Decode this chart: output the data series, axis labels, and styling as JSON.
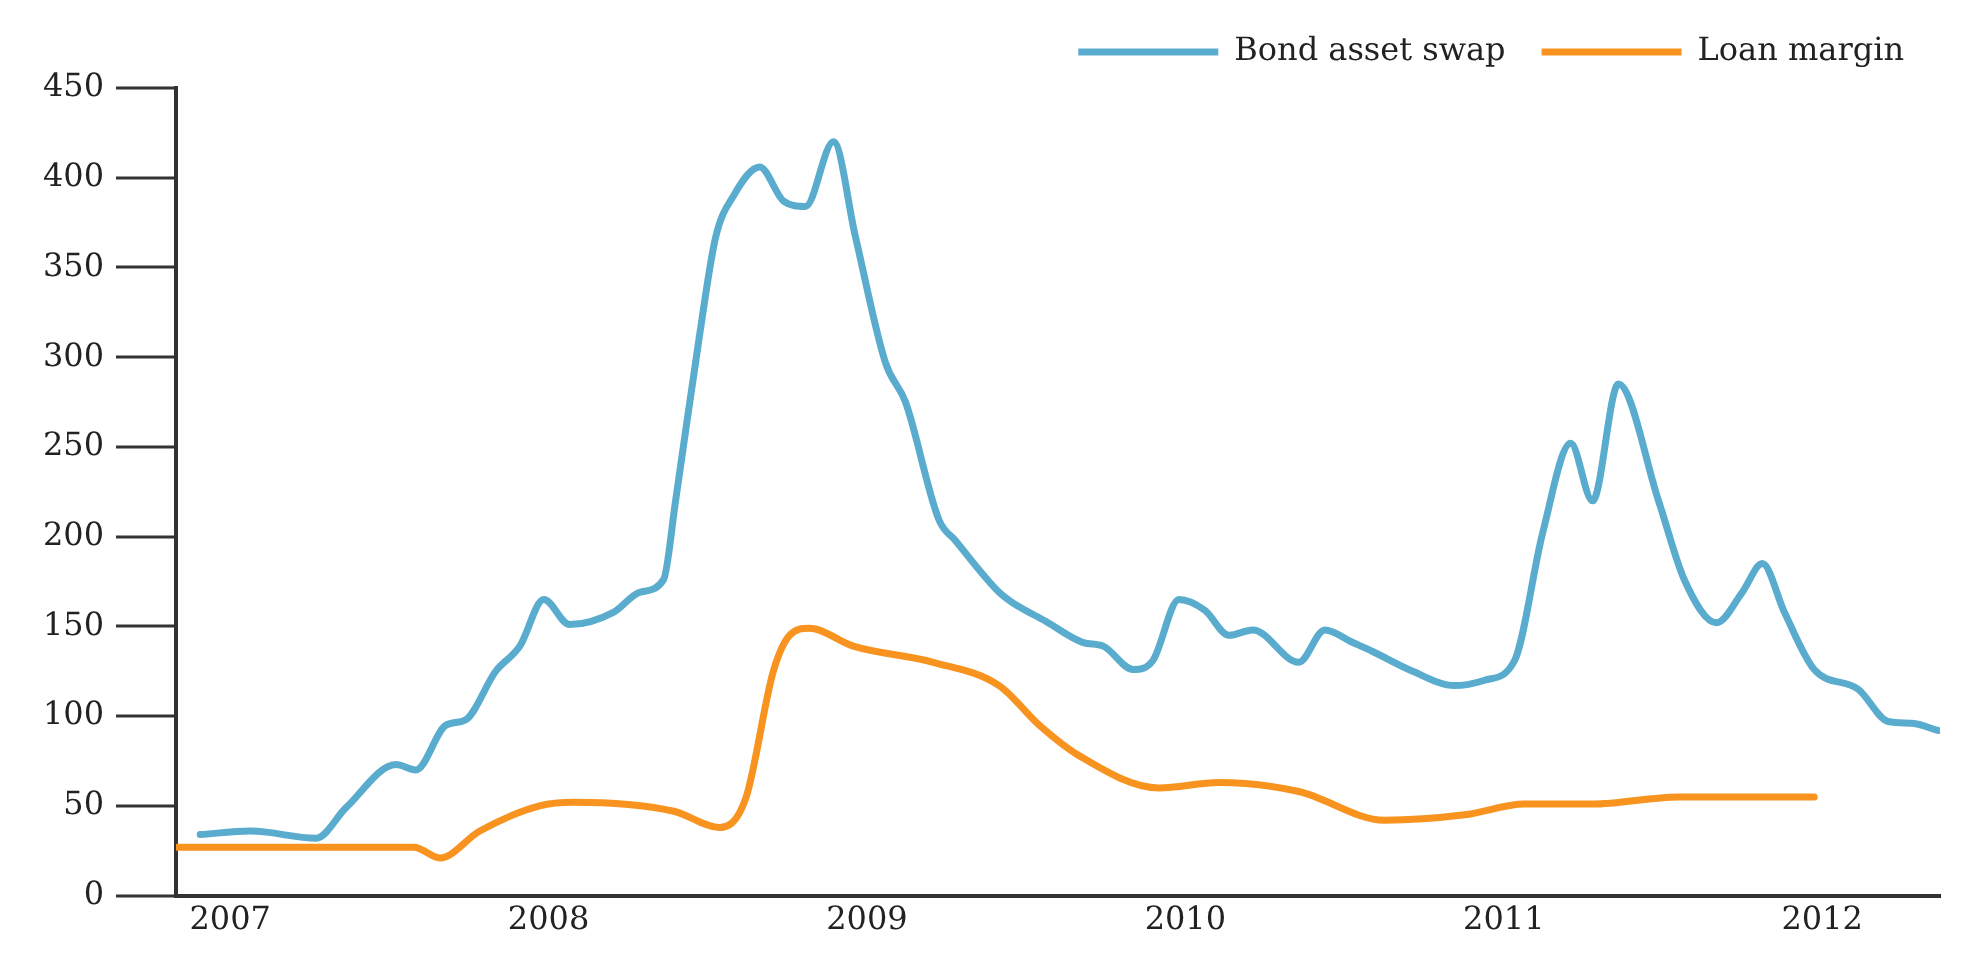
{
  "chart_data": {
    "type": "line",
    "x": [
      2006.906,
      2007.063,
      2007.27,
      2007.364,
      2007.521,
      2007.583,
      2007.678,
      2007.74,
      2007.834,
      2007.91,
      2007.985,
      2008.066,
      2008.205,
      2008.286,
      2008.361,
      2008.399,
      2008.474,
      2008.525,
      2008.581,
      2008.663,
      2008.738,
      2008.807,
      2008.895,
      2008.964,
      2009.058,
      2009.121,
      2009.227,
      2009.277,
      2009.415,
      2009.459,
      2009.56,
      2009.679,
      2009.742,
      2009.836,
      2009.898,
      2009.98,
      2010.061,
      2010.137,
      2010.212,
      2010.356,
      2010.438,
      2010.526,
      2010.588,
      2010.714,
      2010.845,
      2010.94,
      2011.034,
      2011.122,
      2011.21,
      2011.279,
      2011.36,
      2011.486,
      2011.567,
      2011.668,
      2011.749,
      2011.812,
      2011.881,
      2011.975,
      2012.113,
      2012.207,
      2012.282,
      2012.364
    ],
    "series": [
      {
        "name": "Bond asset swap",
        "color": "#5aacce",
        "values": [
          34,
          36,
          32,
          49,
          73,
          70,
          95,
          98,
          125,
          139,
          165,
          151,
          158,
          169,
          176,
          220,
          312,
          367,
          390,
          406,
          387,
          384,
          420,
          367,
          297,
          275,
          209,
          198,
          169,
          163,
          153,
          141,
          139,
          126,
          131,
          165,
          159,
          145,
          148,
          130,
          148,
          141,
          136,
          125,
          117,
          120,
          131,
          202,
          252,
          220,
          285,
          220,
          176,
          152,
          169,
          185,
          158,
          126,
          115,
          97,
          96,
          92
        ]
      },
      {
        "name": "Loan margin",
        "color": "#f7931e",
        "x": [
          2006.83,
          2007.577,
          2007.659,
          2007.784,
          2007.972,
          2008.079,
          2008.393,
          2008.537,
          2008.619,
          2008.706,
          2008.757,
          2008.819,
          2008.957,
          2009.208,
          2009.415,
          2009.541,
          2009.666,
          2009.917,
          2010.105,
          2010.356,
          2010.626,
          2010.877,
          2011.065,
          2011.279,
          2011.548,
          2011.975
        ],
        "values": [
          27,
          27,
          21,
          36,
          50,
          52,
          47,
          38,
          54,
          125,
          145,
          149,
          139,
          130,
          117,
          95,
          78,
          60,
          63,
          58,
          42,
          45,
          51,
          51,
          55,
          55
        ]
      }
    ],
    "xlim": [
      2006.83,
      2012.37
    ],
    "xticks": [
      2007,
      2008,
      2009,
      2010,
      2011,
      2012
    ],
    "ylim": [
      0,
      450
    ],
    "yticks": [
      0,
      50,
      100,
      150,
      200,
      250,
      300,
      350,
      400,
      450
    ],
    "grid": false,
    "legend": "top right",
    "marker": "none",
    "line_style": "solid"
  }
}
